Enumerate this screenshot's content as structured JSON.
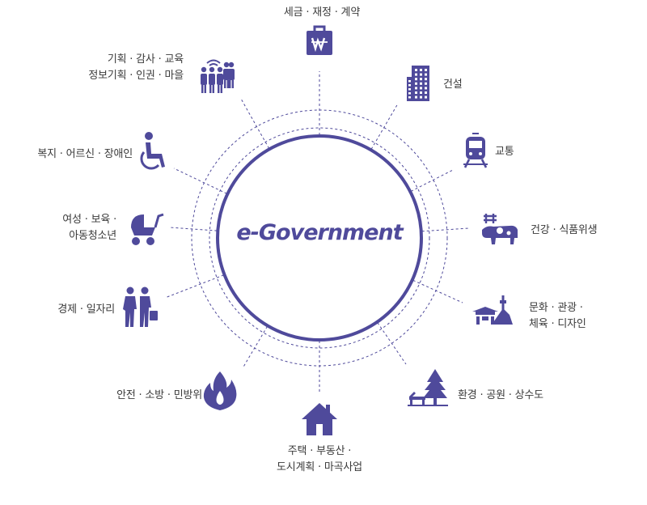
{
  "center": {
    "title": "e-Government"
  },
  "colors": {
    "accent": "#4f4a9b",
    "text": "#3a3a3a"
  },
  "sectors": [
    {
      "id": "tax",
      "icon": "wallet-won-icon",
      "lines": [
        "세금 · 재정 · 계약"
      ]
    },
    {
      "id": "construction",
      "icon": "building-icon",
      "lines": [
        "건설"
      ]
    },
    {
      "id": "transport",
      "icon": "train-icon",
      "lines": [
        "교통"
      ]
    },
    {
      "id": "health",
      "icon": "cow-icon",
      "lines": [
        "건강 · 식품위생"
      ]
    },
    {
      "id": "culture",
      "icon": "palace-tower-icon",
      "lines": [
        "문화 · 관광 ·",
        "체육 · 디자인"
      ]
    },
    {
      "id": "environment",
      "icon": "tree-bench-icon",
      "lines": [
        "환경 · 공원 · 상수도"
      ]
    },
    {
      "id": "housing",
      "icon": "house-icon",
      "lines": [
        "주택 · 부동산 ·",
        "도시계획 · 마곡사업"
      ]
    },
    {
      "id": "safety",
      "icon": "fire-icon",
      "lines": [
        "안전 · 소방 · 민방위"
      ]
    },
    {
      "id": "economy",
      "icon": "job-seekers-icon",
      "lines": [
        "경제 · 일자리"
      ]
    },
    {
      "id": "women",
      "icon": "stroller-icon",
      "lines": [
        "여성 · 보육 ·",
        "아동청소년"
      ]
    },
    {
      "id": "welfare",
      "icon": "wheelchair-icon",
      "lines": [
        "복지 · 어르신 · 장애인"
      ]
    },
    {
      "id": "planning",
      "icon": "people-wifi-icon",
      "lines": [
        "기획 · 감사 · 교육",
        "정보기획 · 인권 · 마을"
      ]
    }
  ]
}
